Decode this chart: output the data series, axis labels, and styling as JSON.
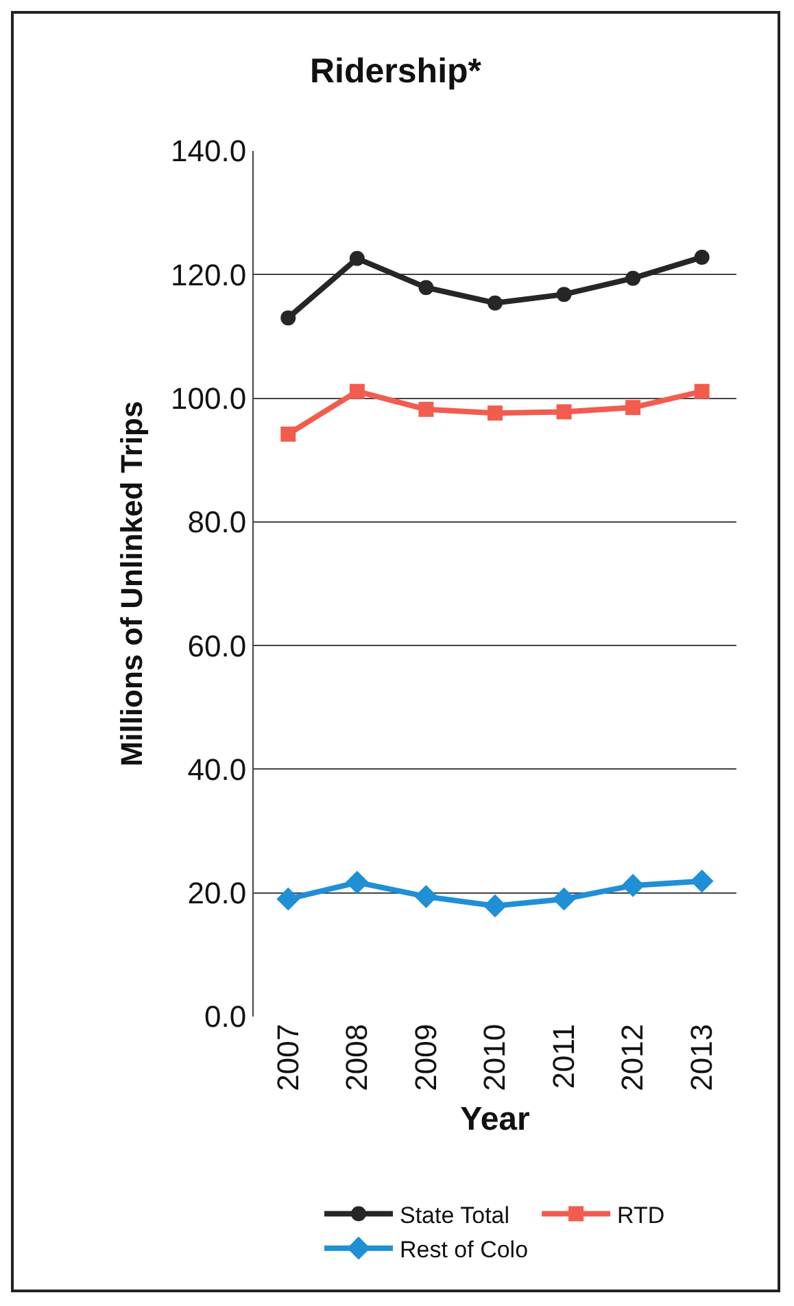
{
  "chart_data": {
    "type": "line",
    "title": "Ridership*",
    "xlabel": "Year",
    "ylabel": "Millions of Unlinked Trips",
    "categories": [
      "2007",
      "2008",
      "2009",
      "2010",
      "2011",
      "2012",
      "2013"
    ],
    "series": [
      {
        "name": "State Total",
        "color": "#262626",
        "marker": "circle",
        "values": [
          113.0,
          122.6,
          117.9,
          115.4,
          116.8,
          119.4,
          122.8
        ]
      },
      {
        "name": "RTD",
        "color": "#f25c4f",
        "marker": "square",
        "values": [
          94.2,
          101.1,
          98.2,
          97.6,
          97.8,
          98.5,
          101.1
        ]
      },
      {
        "name": "Rest of Colo",
        "color": "#1f8fd6",
        "marker": "diamond",
        "values": [
          19.0,
          21.7,
          19.4,
          17.9,
          19.0,
          21.2,
          21.9
        ]
      }
    ],
    "ylim": [
      0,
      140
    ],
    "yticks": [
      {
        "value": 0,
        "label": "0.0"
      },
      {
        "value": 20,
        "label": "20.0"
      },
      {
        "value": 40,
        "label": "40.0"
      },
      {
        "value": 60,
        "label": "60.0"
      },
      {
        "value": 80,
        "label": "80.0"
      },
      {
        "value": 100,
        "label": "100.0"
      },
      {
        "value": 120,
        "label": "120.0"
      },
      {
        "value": 140,
        "label": "140.0"
      }
    ],
    "grid": "y",
    "legend": "bottom",
    "line_style": "solid"
  }
}
